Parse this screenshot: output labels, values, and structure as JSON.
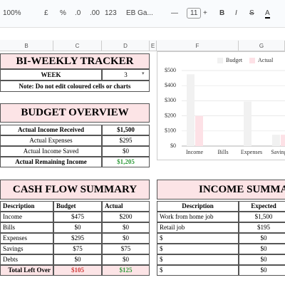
{
  "toolbar": {
    "zoom": "100%",
    "currency": "£",
    "percent": "%",
    "dec_less": ".0",
    "dec_more": ".00",
    "format": "123",
    "font": "EB Ga...",
    "minus": "—",
    "font_size": "11",
    "plus": "+",
    "bold": "B",
    "italic": "I",
    "strike": "S",
    "color": "A"
  },
  "columns": [
    "B",
    "C",
    "D",
    "E",
    "F",
    "G"
  ],
  "tracker": {
    "title": "BI-WEEKLY TRACKER",
    "week_label": "WEEK",
    "week": "3",
    "note": "Note: Do not edit coloured cells or charts"
  },
  "budget_overview": {
    "title": "BUDGET OVERVIEW",
    "rows": [
      [
        "Actual Income Received",
        "$1,500"
      ],
      [
        "Actual Expenses",
        "$295"
      ],
      [
        "Actual Income Saved",
        "$0"
      ],
      [
        "Actual Remaining Income",
        "$1,205"
      ]
    ]
  },
  "cash_flow": {
    "title": "CASH FLOW SUMMARY",
    "header": [
      "Description",
      "Budget",
      "Actual"
    ],
    "rows": [
      [
        "Income",
        "$475",
        "$200"
      ],
      [
        "Bills",
        "$0",
        "$0"
      ],
      [
        "Expenses",
        "$295",
        "$0"
      ],
      [
        "Savings",
        "$75",
        "$75"
      ],
      [
        "Debts",
        "$0",
        "$0"
      ]
    ],
    "total": [
      "Total Left Over",
      "$105",
      "$125"
    ]
  },
  "income_summary": {
    "title": "INCOME SUMMARY",
    "header": [
      "Description",
      "Expected"
    ],
    "rows": [
      [
        "Work from home job",
        "$1,500"
      ],
      [
        "Retail job",
        "$195"
      ],
      [
        "$",
        "$0"
      ],
      [
        "$",
        "$0"
      ],
      [
        "$",
        "$0"
      ],
      [
        "$",
        "$0"
      ]
    ]
  },
  "chart_data": {
    "type": "bar",
    "categories": [
      "Income",
      "Bills",
      "Expenses",
      "Savings"
    ],
    "series": [
      {
        "name": "Budget",
        "color": "#f1f1f1",
        "values": [
          475,
          0,
          295,
          75
        ]
      },
      {
        "name": "Actual",
        "color": "#fde1e6",
        "values": [
          200,
          0,
          0,
          75
        ]
      }
    ],
    "ylim": [
      0,
      500
    ],
    "yticks": [
      {
        "value": 0,
        "label": "$0"
      },
      {
        "value": 100,
        "label": "$100"
      },
      {
        "value": 200,
        "label": "$200"
      },
      {
        "value": 300,
        "label": "$300"
      },
      {
        "value": 400,
        "label": "$400"
      },
      {
        "value": 500,
        "label": "$500"
      }
    ],
    "grid": true,
    "legend": "top"
  }
}
